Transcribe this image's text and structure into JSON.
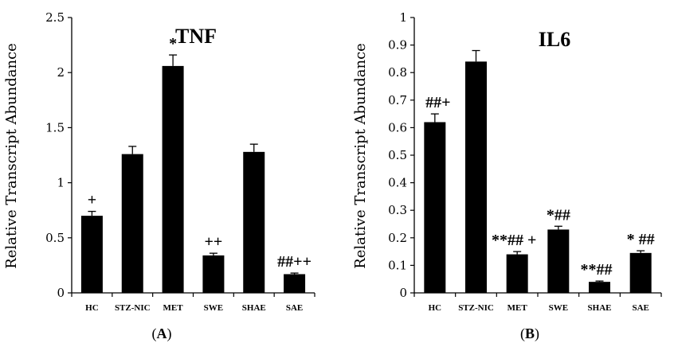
{
  "chart_data": [
    {
      "type": "bar",
      "title": "TNF",
      "ylabel": "Relative Transcript Abundance",
      "xlabel": "",
      "panel_label": "A",
      "categories": [
        "HC",
        "STZ-NIC",
        "MET",
        "SWE",
        "SHAE",
        "SAE"
      ],
      "values": [
        0.7,
        1.26,
        2.06,
        0.34,
        1.28,
        0.17
      ],
      "errors": [
        0.04,
        0.07,
        0.1,
        0.02,
        0.07,
        0.01
      ],
      "annotations": [
        "+",
        "",
        "*",
        "++",
        "",
        "##++"
      ],
      "ylim": [
        0,
        2.5
      ],
      "yticks": [
        "0",
        "0.5",
        "1",
        "1.5",
        "2",
        "2.5"
      ],
      "ytick_values": [
        0,
        0.5,
        1,
        1.5,
        2,
        2.5
      ],
      "bar_color": "#000000",
      "grid": false
    },
    {
      "type": "bar",
      "title": "IL6",
      "ylabel": "Relative Transcript Abundance",
      "xlabel": "",
      "panel_label": "B",
      "categories": [
        "HC",
        "STZ-NIC",
        "MET",
        "SWE",
        "SHAE",
        "SAE"
      ],
      "values": [
        0.62,
        0.84,
        0.14,
        0.23,
        0.04,
        0.145
      ],
      "errors": [
        0.03,
        0.04,
        0.01,
        0.012,
        0.003,
        0.008
      ],
      "annotations": [
        "##+",
        "",
        "**## +",
        "*##",
        "**##",
        "* ##"
      ],
      "ylim": [
        0,
        1
      ],
      "yticks": [
        "0",
        "0.1",
        "0.2",
        "0.3",
        "0.4",
        "0.5",
        "0.6",
        "0.7",
        "0.8",
        "0.9",
        "1"
      ],
      "ytick_values": [
        0,
        0.1,
        0.2,
        0.3,
        0.4,
        0.5,
        0.6,
        0.7,
        0.8,
        0.9,
        1
      ],
      "bar_color": "#000000",
      "grid": false
    }
  ]
}
